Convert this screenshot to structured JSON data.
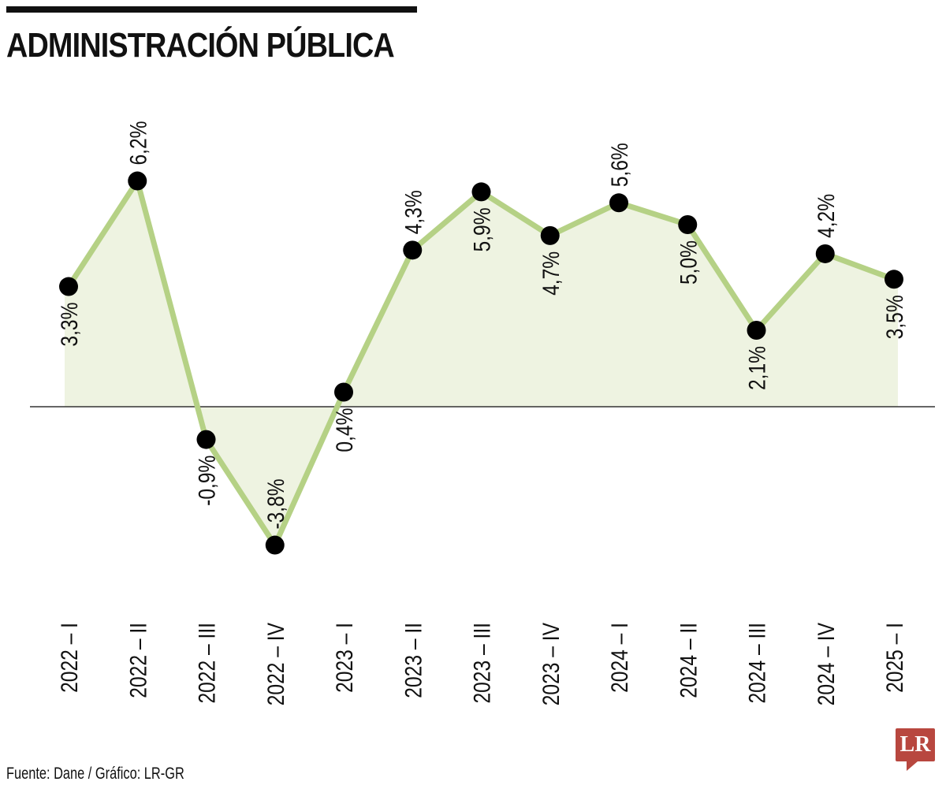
{
  "header": {
    "title": "ADMINISTRACIÓN PÚBLICA"
  },
  "footer": {
    "source": "Fuente: Dane / Gráfico: LR-GR",
    "logo_text": "LR"
  },
  "colors": {
    "line": "#b5d185",
    "area": "#eef3e1",
    "marker": "#000000",
    "logo": "#b8473f"
  },
  "chart_data": {
    "type": "area",
    "title": "ADMINISTRACIÓN PÚBLICA",
    "xlabel": "",
    "ylabel": "",
    "grid": false,
    "legend": "none",
    "categories": [
      "2022 – I",
      "2022 – II",
      "2022 – III",
      "2022 – IV",
      "2023 – I",
      "2023 – II",
      "2023 – III",
      "2023 – IV",
      "2024 – I",
      "2024 – II",
      "2024 – III",
      "2024 – IV",
      "2025 – I"
    ],
    "values": [
      3.3,
      6.2,
      -0.9,
      -3.8,
      0.4,
      4.3,
      5.9,
      4.7,
      5.6,
      5.0,
      2.1,
      4.2,
      3.5
    ],
    "value_labels": [
      "3,3%",
      "6,2%",
      "-0,9%",
      "-3,8%",
      "0,4%",
      "4,3%",
      "5,9%",
      "4,7%",
      "5,6%",
      "5,0%",
      "2,1%",
      "4,2%",
      "3,5%"
    ],
    "label_positions": [
      "below",
      "above",
      "below",
      "above",
      "below",
      "above",
      "below",
      "below",
      "above",
      "below",
      "below",
      "above",
      "below"
    ],
    "ylim": [
      -4.5,
      7
    ]
  }
}
